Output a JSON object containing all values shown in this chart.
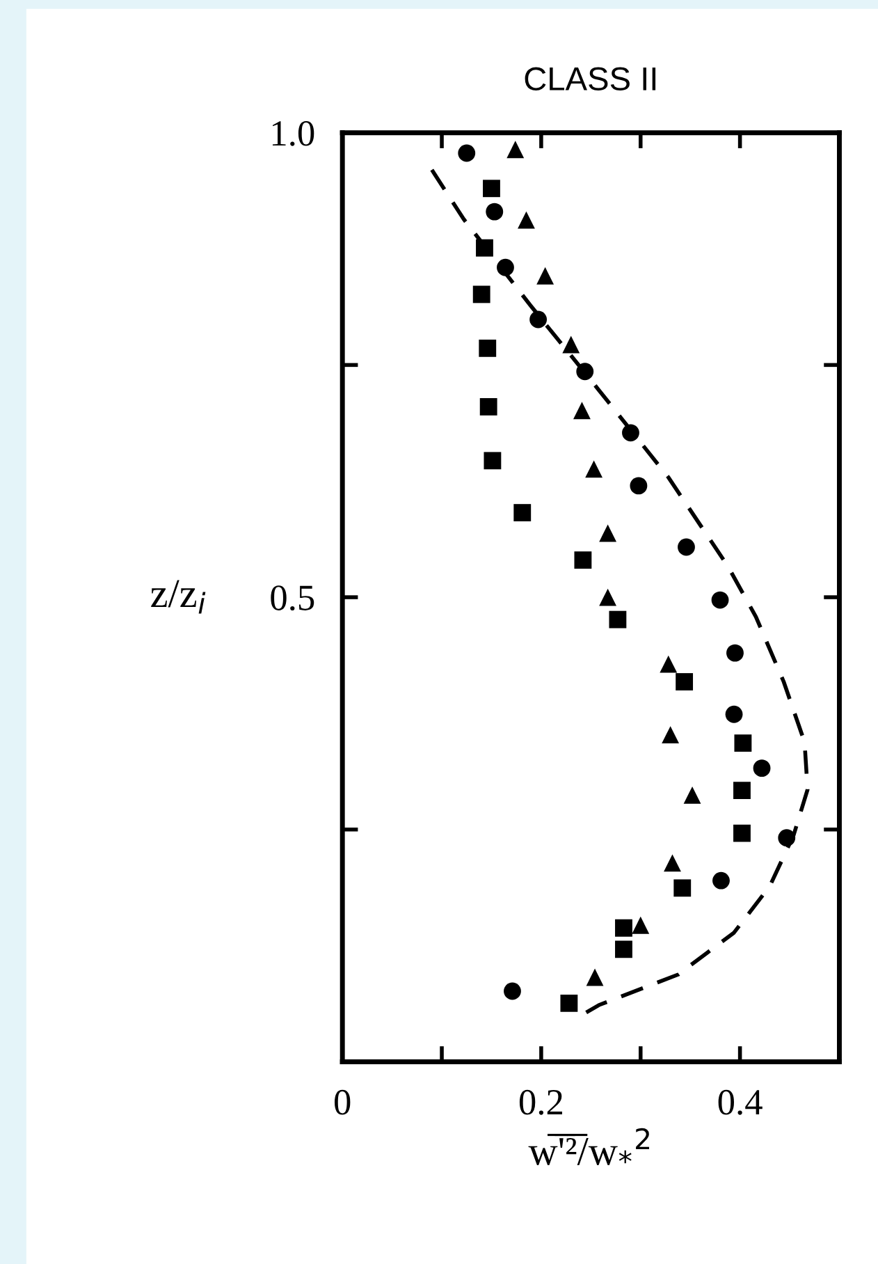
{
  "chart_data": {
    "type": "scatter",
    "title": "CLASS II",
    "xlabel": "w̅'̅²̅/w$_{*}$$^{2}$",
    "ylabel": "z/z$_{i}$",
    "xlim": [
      0,
      0.5
    ],
    "xticks": [
      {
        "value": 0,
        "label": "0"
      },
      {
        "value": 0.1,
        "label": null
      },
      0.2,
      {
        "value": 0.3,
        "label": null
      },
      0.4
    ],
    "ylim": [
      0,
      1.0
    ],
    "yticks": [
      {
        "value": 0.25,
        "label": null
      },
      {
        "value": 0.5,
        "label": "0.5"
      },
      {
        "value": 0.75,
        "label": null
      },
      {
        "value": 1.0,
        "label": "1.0"
      }
    ],
    "grid": false,
    "legend": false,
    "series": [
      {
        "marker": "circle",
        "color": "#000000",
        "x": [
          0.125,
          0.153,
          0.164,
          0.197,
          0.244,
          0.29,
          0.298,
          0.346,
          0.38,
          0.395,
          0.394,
          0.422,
          0.447,
          0.381,
          0.171
        ],
        "values": [
          0.978,
          0.915,
          0.855,
          0.799,
          0.743,
          0.677,
          0.62,
          0.554,
          0.497,
          0.44,
          0.374,
          0.316,
          0.241,
          0.195,
          0.076
        ]
      },
      {
        "marker": "square",
        "color": "#000000",
        "x": [
          0.15,
          0.143,
          0.14,
          0.146,
          0.147,
          0.151,
          0.181,
          0.242,
          0.277,
          0.344,
          0.403,
          0.402,
          0.402,
          0.342,
          0.283,
          0.283,
          0.228
        ],
        "values": [
          0.94,
          0.876,
          0.826,
          0.768,
          0.705,
          0.647,
          0.591,
          0.54,
          0.476,
          0.409,
          0.343,
          0.292,
          0.246,
          0.187,
          0.144,
          0.121,
          0.063
        ]
      },
      {
        "marker": "triangle",
        "color": "#000000",
        "x": [
          0.174,
          0.185,
          0.204,
          0.23,
          0.241,
          0.253,
          0.267,
          0.267,
          0.328,
          0.33,
          0.352,
          0.332,
          0.3,
          0.254
        ],
        "values": [
          0.982,
          0.906,
          0.846,
          0.772,
          0.701,
          0.638,
          0.569,
          0.5,
          0.428,
          0.352,
          0.287,
          0.214,
          0.147,
          0.091
        ]
      },
      {
        "type": "line",
        "marker": "none",
        "line_style": "dashed",
        "color": "#000000",
        "x": [
          0.09,
          0.122,
          0.19,
          0.258,
          0.328,
          0.388,
          0.416,
          0.444,
          0.465,
          0.468,
          0.454,
          0.43,
          0.394,
          0.338,
          0.258,
          0.239
        ],
        "values": [
          0.96,
          0.907,
          0.813,
          0.723,
          0.629,
          0.533,
          0.479,
          0.409,
          0.344,
          0.293,
          0.244,
          0.189,
          0.139,
          0.094,
          0.061,
          0.049
        ]
      }
    ]
  }
}
